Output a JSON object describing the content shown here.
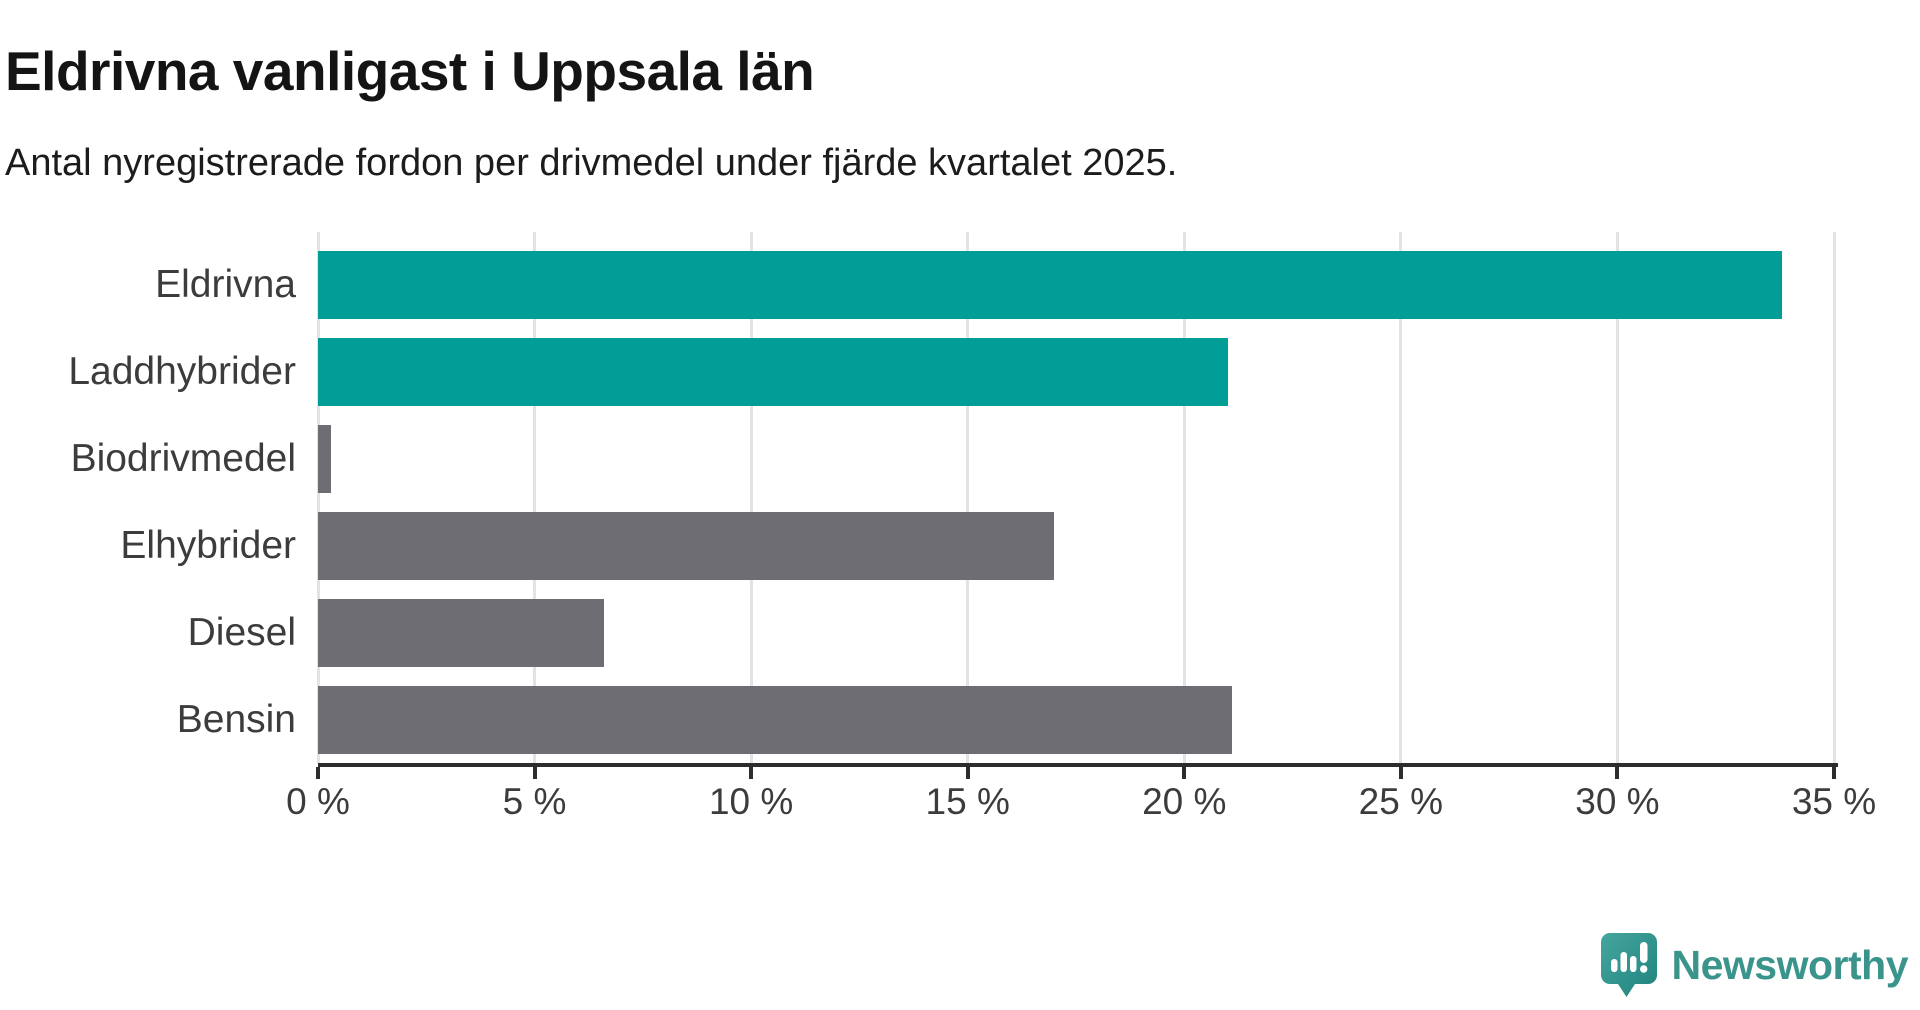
{
  "header": {
    "title": "Eldrivna vanligast i Uppsala län",
    "subtitle": "Antal nyregistrerade fordon per drivmedel under fjärde kvartalet 2025."
  },
  "chart_data": {
    "type": "bar",
    "orientation": "horizontal",
    "title": "Eldrivna vanligast i Uppsala län",
    "subtitle": "Antal nyregistrerade fordon per drivmedel under fjärde kvartalet 2025.",
    "categories": [
      "Eldrivna",
      "Laddhybrider",
      "Biodrivmedel",
      "Elhybrider",
      "Diesel",
      "Bensin"
    ],
    "values": [
      33.8,
      21.0,
      0.3,
      17.0,
      6.6,
      21.1
    ],
    "bar_colors": [
      "#009e96",
      "#009e96",
      "#6d6d73",
      "#6d6d73",
      "#6d6d73",
      "#6d6d73"
    ],
    "unit": "%",
    "xlabel": "",
    "ylabel": "",
    "xlim": [
      0,
      35
    ],
    "x_ticks": [
      0,
      5,
      10,
      15,
      20,
      25,
      30,
      35
    ],
    "tick_label_suffix": " %",
    "grid": true,
    "legend": "none"
  },
  "colors": {
    "accent_teal": "#009e96",
    "neutral_gray": "#6d6d73",
    "gridline": "#e3e3e3",
    "axis": "#2d2d2d",
    "text": "#3c3c3c",
    "logo_teal": "#3a948c"
  },
  "logo": {
    "text": "Newsworthy",
    "icon": "newsworthy-bubble-chart-icon"
  }
}
